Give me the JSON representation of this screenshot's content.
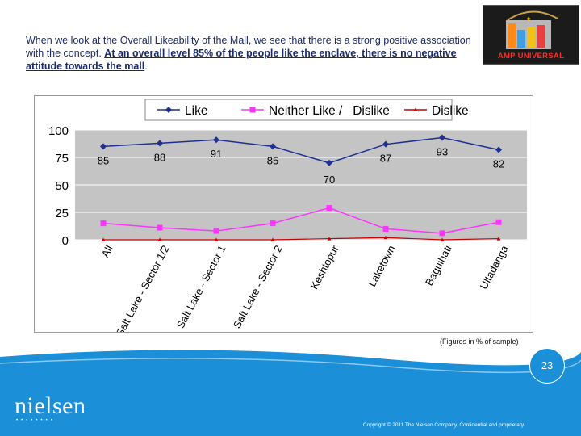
{
  "slide": {
    "intro_text": "When we look at the Overall Likeability of the Mall, we see that there is a strong positive association with the concept.",
    "intro_emphasis": "At an overall level 85% of the people like the enclave, there is no negative attitude towards the mall",
    "intro_end": ".",
    "logo_text": "AMP UNIVERSAL",
    "footnote": "(Figures in % of sample)",
    "page_number": "23",
    "brand": "nielsen",
    "brand_dots": "••••••••",
    "copyright": "Copyright © 2011 The Nielsen Company. Confidential and proprietary."
  },
  "colors": {
    "like": "#1f2f8f",
    "neither": "#ff33ff",
    "dislike": "#cc0000",
    "plot_bg": "#c4c4c4",
    "footer": "#1b8fd8"
  },
  "chart_data": {
    "type": "line",
    "categories": [
      "All",
      "Salt Lake - Sector 1/2",
      "Salt Lake - Sector 1",
      "Salt Lake - Sector 2",
      "Keshtopur",
      "Laketown",
      "Baguihati",
      "Ultadanga"
    ],
    "series": [
      {
        "name": "Like",
        "values": [
          85,
          88,
          91,
          85,
          70,
          87,
          93,
          82
        ],
        "labels": [
          "85",
          "88",
          "91",
          "85",
          "70",
          "87",
          "93",
          "82"
        ]
      },
      {
        "name": "Neither Like /   Dislike",
        "values": [
          15,
          11,
          8,
          15,
          29,
          10,
          6,
          16
        ]
      },
      {
        "name": "Dislike",
        "values": [
          0,
          0,
          0,
          0,
          1,
          2,
          0,
          1
        ]
      }
    ],
    "yticks": [
      "100",
      "75",
      "50",
      "25",
      "0"
    ],
    "ylim": [
      0,
      100
    ],
    "legend_position": "top"
  }
}
